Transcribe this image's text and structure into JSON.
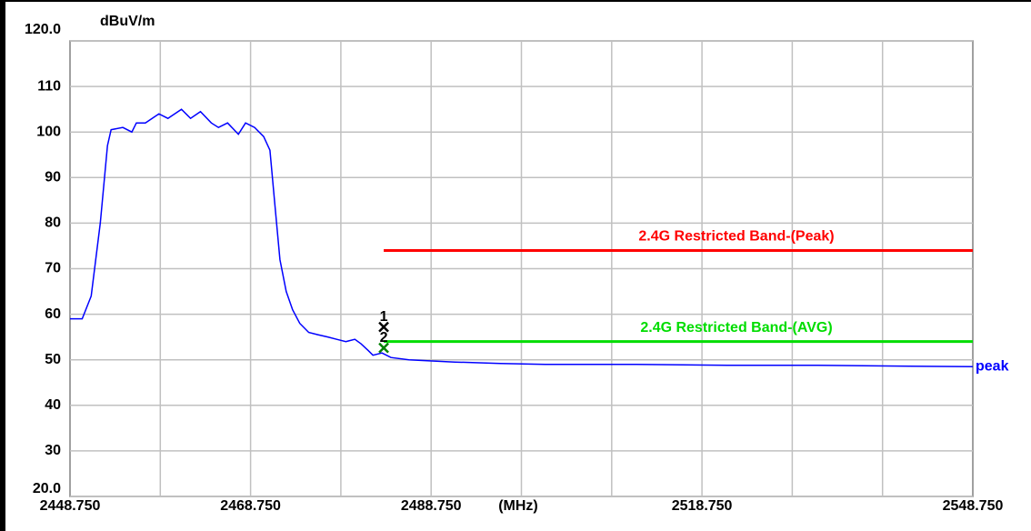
{
  "chart_data": {
    "type": "line",
    "y_label": "dBuV/m",
    "x_label": "(MHz)",
    "x": [
      2448.75,
      2450.1,
      2451.1,
      2452.1,
      2452.9,
      2453.3,
      2454.6,
      2455.6,
      2456.1,
      2457.1,
      2458.6,
      2459.6,
      2461.1,
      2462.1,
      2463.2,
      2464.4,
      2465.2,
      2466.2,
      2467.4,
      2468.2,
      2469.2,
      2470.2,
      2470.9,
      2471.4,
      2472.0,
      2472.7,
      2473.4,
      2474.2,
      2475.2,
      2476.2,
      2477.3,
      2478.3,
      2479.3,
      2480.3,
      2481.0,
      2481.8,
      2482.3,
      2483.3,
      2484.3,
      2486.3,
      2491.4,
      2496.4,
      2501.4,
      2511.5,
      2521.6,
      2531.6,
      2541.7,
      2548.75
    ],
    "series": [
      {
        "name": "peak",
        "color": "#0000ff",
        "values": [
          59,
          59,
          64,
          80,
          97,
          100.5,
          101,
          100,
          102,
          102,
          104,
          103,
          105,
          103,
          104.5,
          102,
          101,
          102,
          99.5,
          102,
          101,
          99,
          96,
          85,
          72,
          65,
          61,
          58,
          56,
          55.5,
          55,
          54.5,
          54,
          54.5,
          53.5,
          52,
          51,
          51.5,
          50.5,
          50,
          49.5,
          49.2,
          49,
          49,
          48.8,
          48.8,
          48.6,
          48.5
        ]
      }
    ],
    "limits": [
      {
        "name": "2.4G Restricted Band-(Peak)",
        "color": "#ff0000",
        "x": [
          2483.5,
          2548.75
        ],
        "value": 74
      },
      {
        "name": "2.4G Restricted Band-(AVG)",
        "color": "#00dd00",
        "x": [
          2483.5,
          2548.75
        ],
        "value": 54
      }
    ],
    "markers": [
      {
        "label": "1",
        "x": 2483.5,
        "value": 57.2,
        "color": "#000000"
      },
      {
        "label": "2",
        "x": 2483.5,
        "value": 52.6,
        "color": "#008000"
      }
    ],
    "xlim": [
      2448.75,
      2548.75
    ],
    "xticks": [
      {
        "value": 2448.75,
        "label": "2448.750"
      },
      {
        "value": 2468.75,
        "label": "2468.750"
      },
      {
        "value": 2488.75,
        "label": "2488.750"
      },
      {
        "value": 2518.75,
        "label": "2518.750"
      },
      {
        "value": 2548.75,
        "label": "2548.750"
      }
    ],
    "xgrid": [
      2458.75,
      2468.75,
      2478.75,
      2488.75,
      2498.75,
      2508.75,
      2518.75,
      2528.75,
      2538.75
    ],
    "ylim": [
      20,
      120
    ],
    "yticks": [
      {
        "value": 20,
        "label": "20.0"
      },
      30,
      40,
      50,
      60,
      70,
      80,
      90,
      100,
      110,
      {
        "value": 120,
        "label": "120.0"
      }
    ],
    "grid": true
  }
}
